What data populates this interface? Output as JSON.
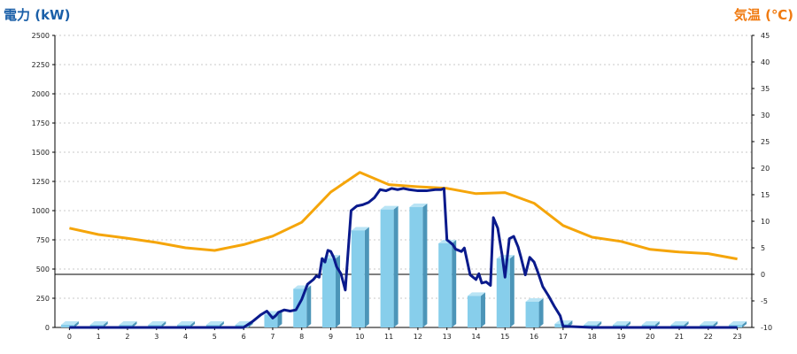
{
  "chart_data": {
    "type": "bar",
    "left_title": "電力 (kW)",
    "right_title": "気温 (℃)",
    "colors": {
      "left_title": "#1a5fa8",
      "right_title": "#f07a10",
      "bar_front": "#87ceeb",
      "bar_side": "#4c95b8",
      "bar_top": "#b9e4f5",
      "power_line": "#0a1a8c",
      "temp_line": "#f5a50a",
      "grid": "#c8c8c8",
      "zero_line": "#000000"
    },
    "categories": [
      "0",
      "1",
      "2",
      "3",
      "4",
      "5",
      "6",
      "7",
      "8",
      "9",
      "10",
      "11",
      "12",
      "13",
      "14",
      "15",
      "16",
      "17",
      "18",
      "19",
      "20",
      "21",
      "22",
      "23"
    ],
    "left_axis": {
      "min": 0,
      "max": 2500,
      "ticks": [
        "0",
        "250",
        "500",
        "750",
        "1000",
        "1250",
        "1500",
        "1750",
        "2000",
        "2250",
        "2500"
      ]
    },
    "right_axis": {
      "min": -10,
      "max": 45,
      "ticks": [
        "-10",
        "-5",
        "0",
        "5",
        "10",
        "15",
        "20",
        "25",
        "30",
        "35",
        "40",
        "45"
      ]
    },
    "grid": true,
    "series": [
      {
        "name": "",
        "kind": "bar",
        "axis": "left",
        "values": [
          10,
          10,
          10,
          10,
          10,
          10,
          10,
          110,
          330,
          590,
          830,
          1010,
          1030,
          720,
          270,
          590,
          220,
          30,
          10,
          10,
          10,
          10,
          10,
          10
        ]
      },
      {
        "name": "",
        "kind": "line",
        "axis": "left",
        "x": [
          0,
          1,
          2,
          3,
          4,
          5,
          6,
          6.3,
          6.6,
          6.8,
          7.0,
          7.1,
          7.2,
          7.4,
          7.6,
          7.8,
          8.0,
          8.2,
          8.4,
          8.5,
          8.6,
          8.7,
          8.8,
          8.9,
          9.0,
          9.1,
          9.2,
          9.35,
          9.5,
          9.7,
          9.9,
          10.1,
          10.3,
          10.5,
          10.7,
          10.9,
          11.1,
          11.3,
          11.5,
          11.7,
          12.0,
          12.3,
          12.6,
          12.8,
          12.9,
          13.0,
          13.2,
          13.3,
          13.5,
          13.6,
          13.8,
          14.0,
          14.1,
          14.2,
          14.35,
          14.5,
          14.6,
          14.75,
          14.9,
          15.0,
          15.15,
          15.3,
          15.45,
          15.55,
          15.7,
          15.85,
          16.0,
          16.15,
          16.3,
          16.5,
          16.7,
          16.9,
          17.0,
          18,
          19,
          20,
          21,
          22,
          23
        ],
        "y": [
          0,
          0,
          0,
          0,
          0,
          0,
          0,
          50,
          110,
          140,
          80,
          100,
          130,
          150,
          140,
          150,
          240,
          370,
          410,
          440,
          430,
          590,
          560,
          660,
          650,
          600,
          520,
          460,
          320,
          1000,
          1040,
          1050,
          1070,
          1110,
          1180,
          1170,
          1190,
          1180,
          1190,
          1180,
          1170,
          1170,
          1180,
          1180,
          1190,
          750,
          710,
          670,
          650,
          680,
          450,
          410,
          460,
          380,
          390,
          360,
          940,
          850,
          620,
          430,
          760,
          780,
          690,
          600,
          450,
          600,
          560,
          460,
          350,
          270,
          180,
          100,
          10,
          0,
          0,
          0,
          0,
          0,
          0
        ]
      },
      {
        "name": "",
        "kind": "line",
        "axis": "right",
        "x": [
          0,
          1,
          2,
          3,
          4,
          5,
          6,
          7,
          8,
          9,
          10,
          11,
          12,
          13,
          14,
          15,
          16,
          17,
          18,
          19,
          20,
          21,
          22,
          23
        ],
        "y": [
          8.7,
          7.5,
          6.8,
          6,
          5,
          4.5,
          5.6,
          7.2,
          9.8,
          15.5,
          19.2,
          16.9,
          16.5,
          16.2,
          15.2,
          15.4,
          13.4,
          9.2,
          7,
          6.2,
          4.7,
          4.2,
          3.9,
          2.9
        ]
      }
    ]
  }
}
